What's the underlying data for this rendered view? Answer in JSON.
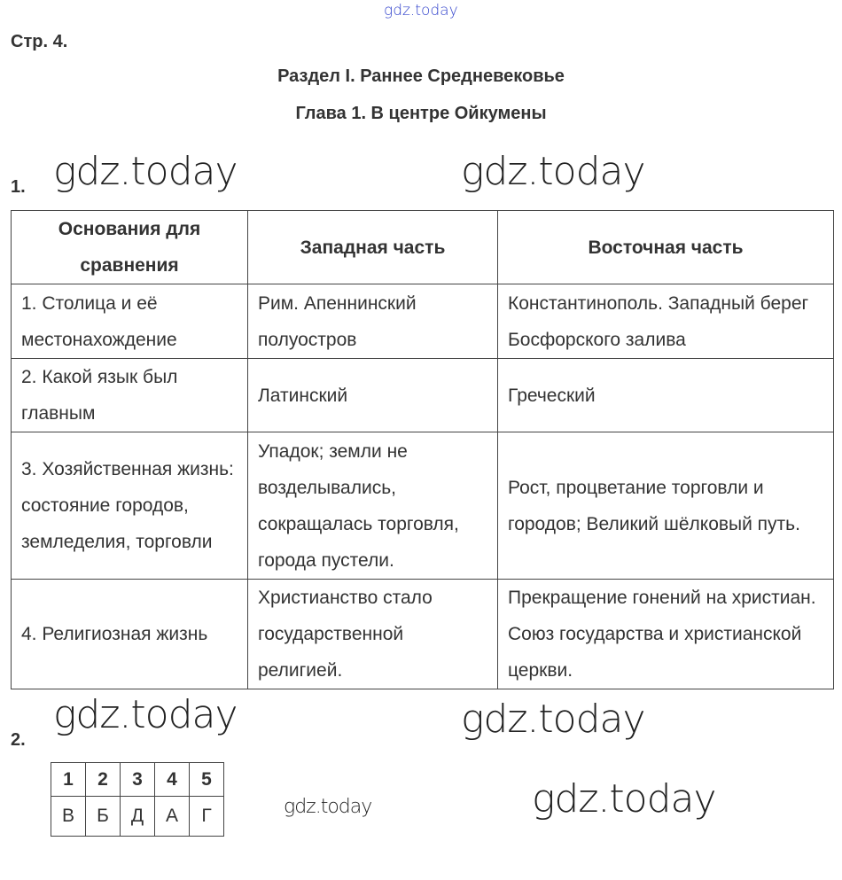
{
  "watermark": "gdz.today",
  "page_label": "Стр. 4.",
  "section_title": "Раздел I. Раннее Средневековье",
  "chapter_title": "Глава 1. В центре Ойкумены",
  "task1": {
    "number": "1.",
    "headers": [
      "Основания для сравнения",
      "Западная часть",
      "Восточная часть"
    ],
    "rows": [
      [
        "1. Столица и её местонахождение",
        "Рим. Апеннинский полуостров",
        "Константинополь. Западный берег Босфорского залива"
      ],
      [
        "2. Какой язык был главным",
        "Латинский",
        "Греческий"
      ],
      [
        "3. Хозяйственная жизнь: состояние городов, земледелия, торговли",
        "Упадок; земли не возделывались, сокращалась торговля, города пустели.",
        "Рост, процветание торговли и городов; Великий шёлковый путь."
      ],
      [
        "4. Религиозная жизнь",
        "Христианство стало государственной религией.",
        "Прекращение гонений на христиан. Союз государства и христианской церкви."
      ]
    ]
  },
  "task2": {
    "number": "2.",
    "numbers": [
      "1",
      "2",
      "3",
      "4",
      "5"
    ],
    "answers": [
      "В",
      "Б",
      "Д",
      "А",
      "Г"
    ]
  }
}
